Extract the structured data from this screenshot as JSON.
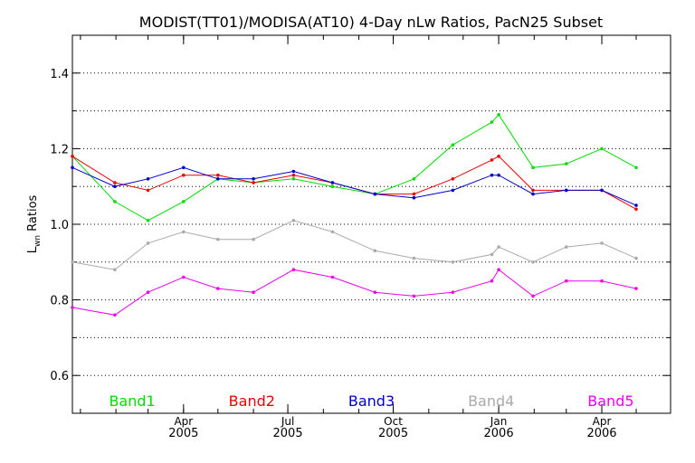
{
  "chart_data": {
    "type": "line",
    "title": "MODIST(TT01)/MODISA(AT10) 4-Day nLw Ratios, PacN25 Subset",
    "ylabel_main": "L",
    "ylabel_sub": "wn",
    "ylabel_rest": " Ratios",
    "ylim": [
      0.5,
      1.5
    ],
    "yticks": [
      "0.6",
      "0.8",
      "1.0",
      "1.2",
      "1.4"
    ],
    "grid": "horizontal dotted",
    "xlim": [
      "2004-12-25",
      "2006-05-31"
    ],
    "xticks": [
      {
        "date": "2005-04-01",
        "month": "Apr",
        "year": "2005"
      },
      {
        "date": "2005-07-01",
        "month": "Jul",
        "year": "2005"
      },
      {
        "date": "2005-10-01",
        "month": "Oct",
        "year": "2005"
      },
      {
        "date": "2006-01-01",
        "month": "Jan",
        "year": "2006"
      },
      {
        "date": "2006-04-01",
        "month": "Apr",
        "year": "2006"
      }
    ],
    "legend_placement": "bottom",
    "x": [
      "2004-12-25",
      "2005-01-31",
      "2005-03-01",
      "2005-04-01",
      "2005-05-01",
      "2005-06-01",
      "2005-07-06",
      "2005-08-09",
      "2005-09-15",
      "2005-10-19",
      "2005-11-22",
      "2005-12-26",
      "2006-01-01",
      "2006-01-31",
      "2006-03-01",
      "2006-04-01",
      "2006-05-01"
    ],
    "series": [
      {
        "name": "Band1",
        "color": "#00dd00",
        "values": [
          1.18,
          1.06,
          1.01,
          1.06,
          1.12,
          1.11,
          1.12,
          1.1,
          1.08,
          1.12,
          1.21,
          1.27,
          1.29,
          1.15,
          1.16,
          1.2,
          1.15
        ]
      },
      {
        "name": "Band2",
        "color": "#ee0000",
        "values": [
          1.18,
          1.11,
          1.09,
          1.13,
          1.13,
          1.11,
          1.13,
          1.11,
          1.08,
          1.08,
          1.12,
          1.17,
          1.18,
          1.09,
          1.09,
          1.09,
          1.04
        ]
      },
      {
        "name": "Band3",
        "color": "#0000cc",
        "values": [
          1.15,
          1.1,
          1.12,
          1.15,
          1.12,
          1.12,
          1.14,
          1.11,
          1.08,
          1.07,
          1.09,
          1.13,
          1.13,
          1.08,
          1.09,
          1.09,
          1.05
        ]
      },
      {
        "name": "Band4",
        "color": "#aaaaaa",
        "values": [
          0.9,
          0.88,
          0.95,
          0.98,
          0.96,
          0.96,
          1.01,
          0.98,
          0.93,
          0.91,
          0.9,
          0.92,
          0.94,
          0.9,
          0.94,
          0.95,
          0.91
        ]
      },
      {
        "name": "Band5",
        "color": "#ee00ee",
        "values": [
          0.78,
          0.76,
          0.82,
          0.86,
          0.83,
          0.82,
          0.88,
          0.86,
          0.82,
          0.81,
          0.82,
          0.85,
          0.88,
          0.81,
          0.85,
          0.85,
          0.83
        ]
      }
    ]
  }
}
